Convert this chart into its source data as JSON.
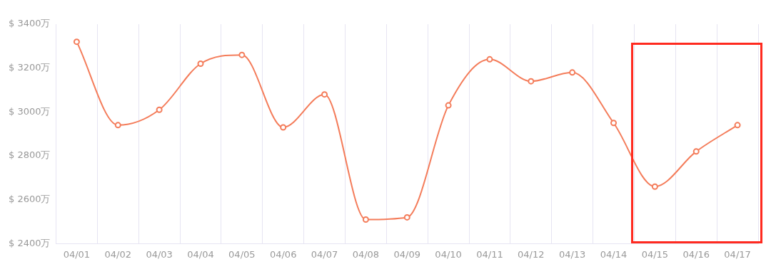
{
  "chart_data": {
    "type": "line",
    "categories": [
      "04/01",
      "04/02",
      "04/03",
      "04/04",
      "04/05",
      "04/06",
      "04/07",
      "04/08",
      "04/09",
      "04/10",
      "04/11",
      "04/12",
      "04/13",
      "04/14",
      "04/15",
      "04/16",
      "04/17"
    ],
    "series": [
      {
        "color": "#f47c5a",
        "values": [
          3320,
          2940,
          3010,
          3220,
          3260,
          2930,
          3080,
          2510,
          2520,
          3030,
          3240,
          3140,
          3180,
          2950,
          2660,
          2820,
          2940
        ]
      }
    ],
    "ylim": [
      2400,
      3400
    ],
    "yticks": [
      {
        "value": 2400,
        "label": "$ 2400万"
      },
      {
        "value": 2600,
        "label": "$ 2600万"
      },
      {
        "value": 2800,
        "label": "$ 2800万"
      },
      {
        "value": 3000,
        "label": "$ 3000万"
      },
      {
        "value": 3200,
        "label": "$ 3200万"
      },
      {
        "value": 3400,
        "label": "$ 3400万"
      }
    ],
    "grid": "x",
    "legend": false,
    "marker": "circle",
    "line_style": "solid"
  }
}
